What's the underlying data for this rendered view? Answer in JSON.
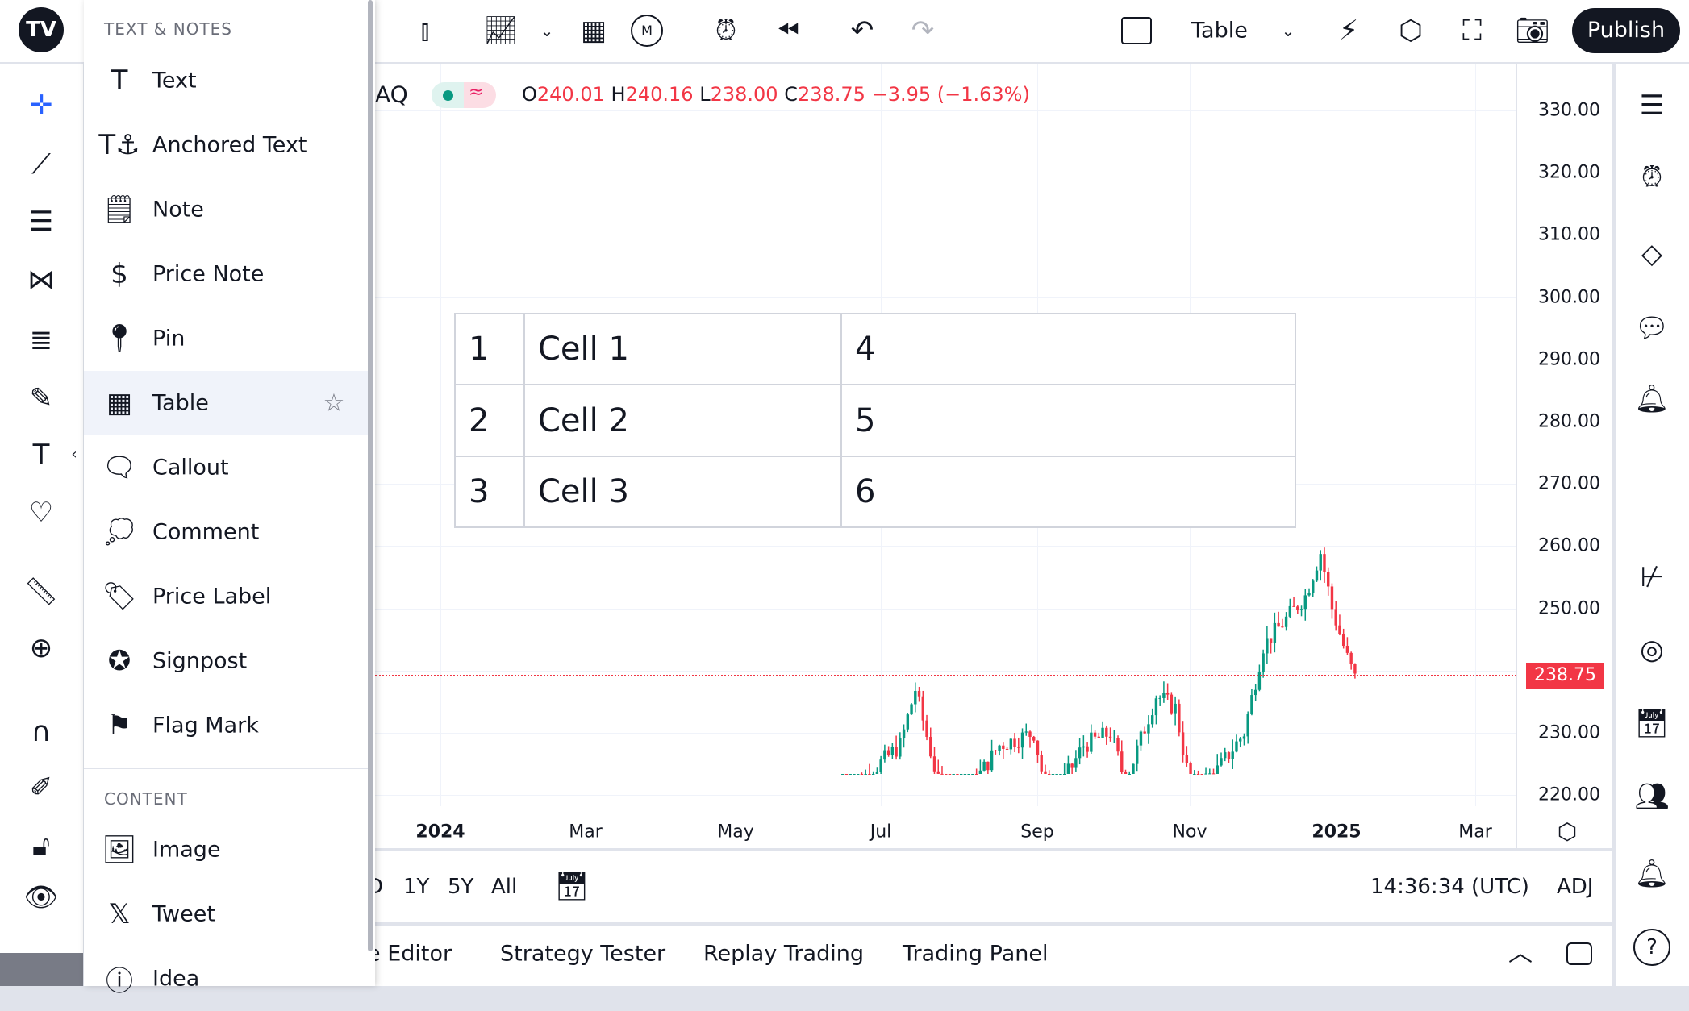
{
  "topbar": {
    "active_tool": "Table",
    "publish": "Publish",
    "interval": "M"
  },
  "legend": {
    "symbol": "AQ",
    "o_label": "O",
    "o": "240.01",
    "h_label": "H",
    "h": "240.16",
    "l_label": "L",
    "l": "238.00",
    "c_label": "C",
    "c": "238.75",
    "change": "−3.95 (−1.63%)"
  },
  "panel": {
    "section1": "TEXT & NOTES",
    "items": [
      "Text",
      "Anchored Text",
      "Note",
      "Price Note",
      "Pin",
      "Table",
      "Callout",
      "Comment",
      "Price Label",
      "Signpost",
      "Flag Mark"
    ],
    "section2": "CONTENT",
    "items2": [
      "Image",
      "Tweet",
      "Idea"
    ]
  },
  "table_drawing": [
    [
      "1",
      "Cell 1",
      "4"
    ],
    [
      "2",
      "Cell 2",
      "5"
    ],
    [
      "3",
      "Cell 3",
      "6"
    ]
  ],
  "price_axis": [
    "330.00",
    "320.00",
    "310.00",
    "300.00",
    "290.00",
    "280.00",
    "270.00",
    "260.00",
    "250.00",
    "240.00",
    "230.00",
    "220.00"
  ],
  "last_price": "238.75",
  "time_axis": [
    "2024",
    "Mar",
    "May",
    "Jul",
    "Sep",
    "Nov",
    "2025",
    "Mar"
  ],
  "price_path": [
    [
      0,
      219
    ],
    [
      16,
      228
    ],
    [
      20,
      237
    ],
    [
      26,
      222
    ],
    [
      31,
      218
    ],
    [
      42,
      228
    ],
    [
      51,
      230
    ],
    [
      55,
      218
    ],
    [
      64,
      228
    ],
    [
      71,
      230
    ],
    [
      75,
      222
    ],
    [
      83,
      236
    ],
    [
      88,
      234
    ],
    [
      92,
      221
    ],
    [
      99,
      224
    ],
    [
      106,
      230
    ],
    [
      111,
      244
    ],
    [
      118,
      249
    ],
    [
      122,
      252
    ],
    [
      126,
      259
    ],
    [
      129,
      250
    ],
    [
      133,
      242
    ],
    [
      135,
      238.75
    ]
  ],
  "colors": {
    "up": "#089981",
    "down": "#f23645",
    "accent": "#2962ff"
  },
  "bottombar": {
    "ranges": [
      "D",
      "1Y",
      "5Y",
      "All"
    ],
    "time": "14:36:34 (UTC)",
    "adj": "ADJ"
  },
  "tabs": [
    "e Editor",
    "Strategy Tester",
    "Replay Trading",
    "Trading Panel"
  ]
}
